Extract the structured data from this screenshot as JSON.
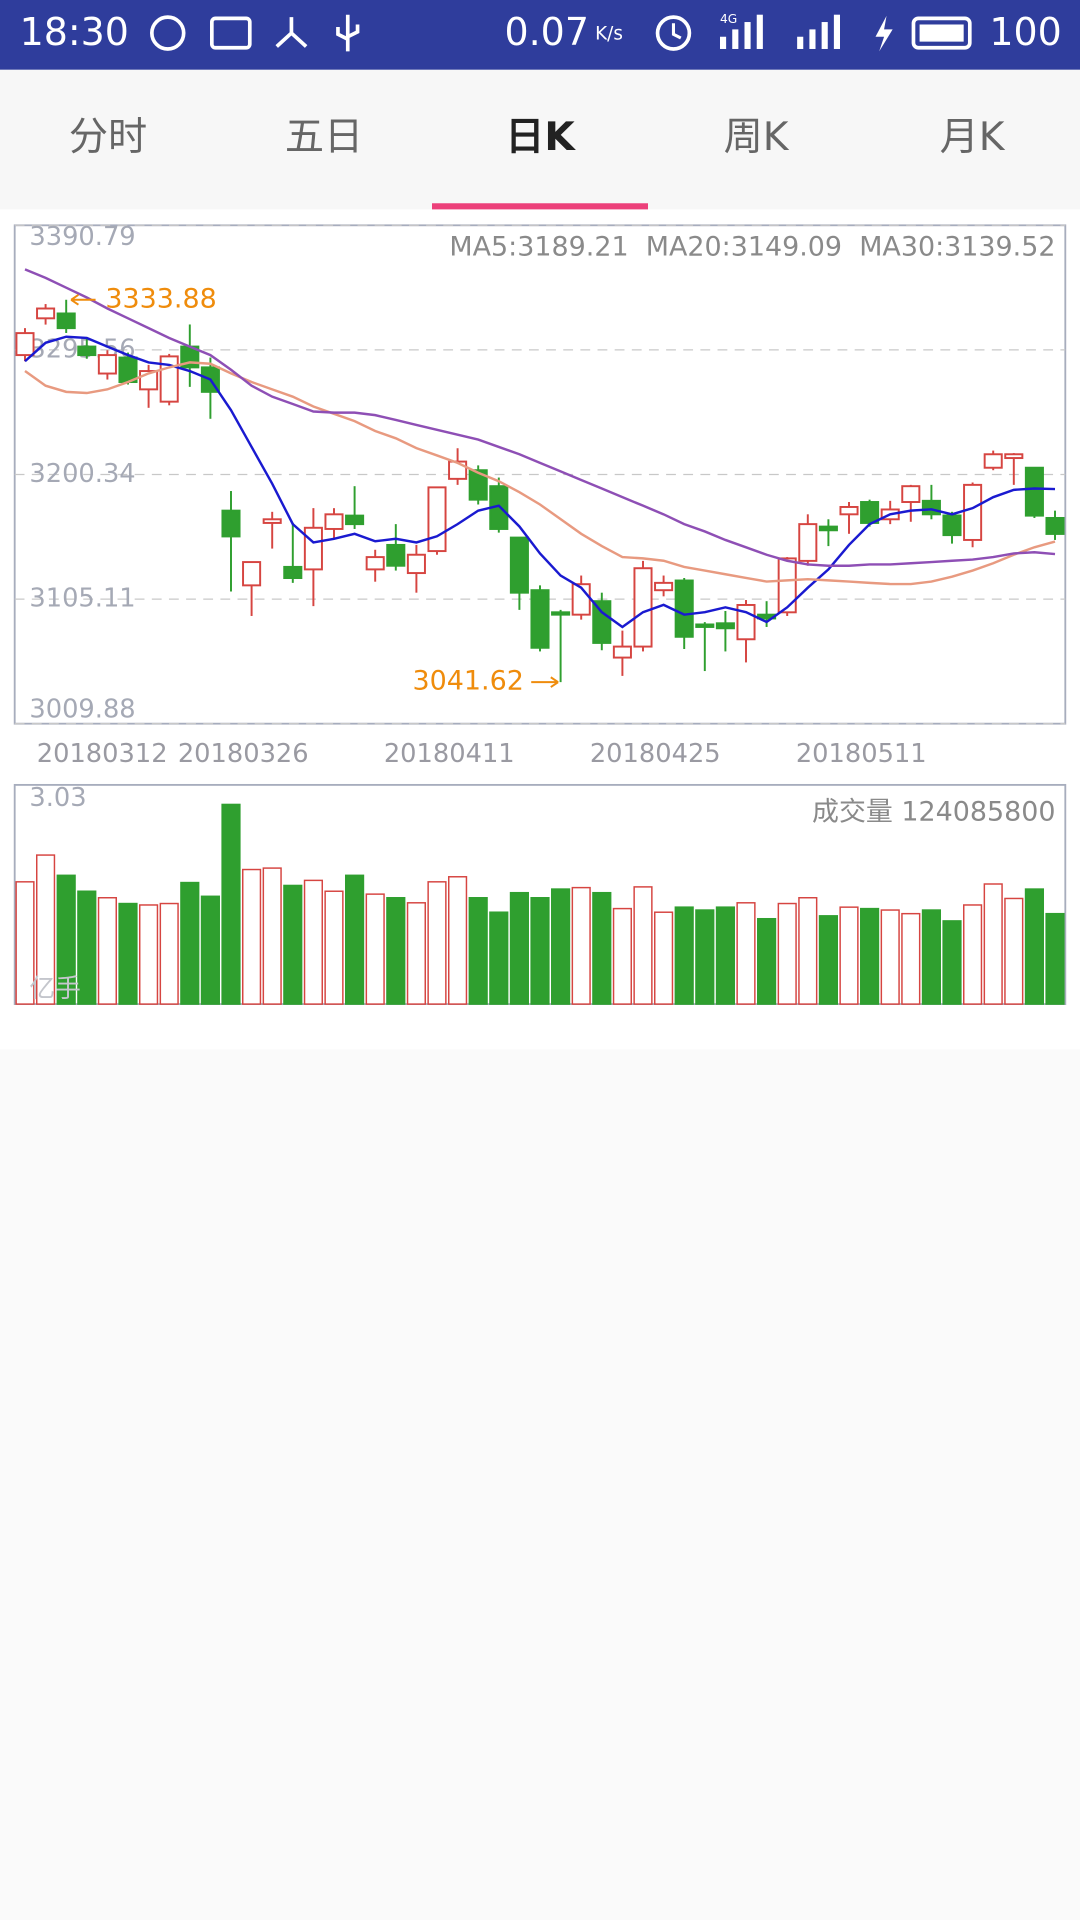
{
  "status_bar": {
    "time": "18:30",
    "speed": "0.07",
    "speed_unit": "K/s",
    "network": "4G",
    "battery": "100"
  },
  "tabs": [
    "分时",
    "五日",
    "日K",
    "周K",
    "月K"
  ],
  "selected_tab": 2,
  "chart_data": [
    {
      "type": "candlestick",
      "categories": [
        "20180312",
        null,
        null,
        null,
        null,
        null,
        null,
        null,
        null,
        null,
        "20180326",
        null,
        null,
        null,
        null,
        null,
        null,
        null,
        null,
        null,
        "20180411",
        null,
        null,
        null,
        null,
        null,
        null,
        null,
        null,
        null,
        "20180425",
        null,
        null,
        null,
        null,
        null,
        null,
        null,
        null,
        null,
        "20180511",
        null,
        null,
        null,
        null,
        null,
        null,
        null,
        null,
        null,
        null
      ],
      "open": [
        3291.6,
        3319.7,
        3323.4,
        3298.1,
        3277.5,
        3289.7,
        3265.4,
        3256.0,
        3298.1,
        3282.2,
        3172.7,
        3115.6,
        3163.3,
        3129.7,
        3127.8,
        3158.7,
        3168.9,
        3127.8,
        3146.5,
        3125.0,
        3141.8,
        3197.0,
        3203.6,
        3191.4,
        3152.1,
        3111.9,
        3095.0,
        3093.2,
        3103.5,
        3060.4,
        3068.8,
        3111.9,
        3119.3,
        3085.7,
        3086.6,
        3074.4,
        3093.2,
        3095.0,
        3134.3,
        3160.5,
        3169.9,
        3179.3,
        3166.1,
        3179.3,
        3180.2,
        3169.0,
        3150.3,
        3205.5,
        3212.9,
        3205.5,
        3167.1
      ],
      "high": [
        3312.2,
        3330.6,
        3333.88,
        3304.7,
        3295.3,
        3293.5,
        3284.1,
        3292.5,
        3315.0,
        3289.7,
        3187.7,
        3133.4,
        3171.8,
        3163.3,
        3174.6,
        3174.6,
        3191.4,
        3142.8,
        3162.4,
        3146.5,
        3190.5,
        3220.4,
        3207.3,
        3198.0,
        3152.1,
        3115.6,
        3096.9,
        3123.1,
        3110.0,
        3081.0,
        3134.3,
        3123.1,
        3121.2,
        3087.5,
        3096.0,
        3104.4,
        3103.5,
        3137.2,
        3169.9,
        3166.1,
        3179.3,
        3181.1,
        3180.2,
        3192.4,
        3192.4,
        3171.8,
        3194.2,
        3218.6,
        3216.7,
        3205.5,
        3172.7
      ],
      "low": [
        3286.9,
        3314.9,
        3308.5,
        3288.8,
        3272.9,
        3269.1,
        3251.3,
        3253.2,
        3267.3,
        3242.9,
        3110.9,
        3092.2,
        3143.7,
        3117.5,
        3099.7,
        3151.2,
        3158.7,
        3118.4,
        3126.9,
        3110.0,
        3139.0,
        3192.4,
        3177.4,
        3155.9,
        3096.9,
        3065.1,
        3041.62,
        3089.4,
        3066.0,
        3046.4,
        3065.1,
        3107.2,
        3067.0,
        3050.1,
        3065.1,
        3056.7,
        3083.8,
        3092.2,
        3130.6,
        3145.6,
        3155.0,
        3160.5,
        3162.4,
        3164.2,
        3166.1,
        3147.5,
        3144.7,
        3203.6,
        3192.4,
        3167.1,
        3150.3
      ],
      "close": [
        3308.4,
        3327.2,
        3312.2,
        3291.6,
        3291.6,
        3271.0,
        3279.4,
        3290.6,
        3282.2,
        3263.5,
        3153.0,
        3133.4,
        3166.1,
        3121.2,
        3159.6,
        3169.9,
        3162.4,
        3137.2,
        3130.6,
        3139.0,
        3190.5,
        3210.2,
        3181.1,
        3158.7,
        3110.0,
        3067.9,
        3093.2,
        3116.5,
        3071.6,
        3068.8,
        3128.7,
        3117.5,
        3076.3,
        3083.8,
        3082.8,
        3100.6,
        3090.3,
        3136.2,
        3162.4,
        3157.7,
        3175.5,
        3163.3,
        3173.6,
        3191.4,
        3169.9,
        3154.0,
        3192.4,
        3215.8,
        3215.8,
        3168.9,
        3154.9
      ],
      "up_color": "#d64541",
      "down_color": "#2f9f2f",
      "annotation_color": "#ef8c0c",
      "lines": [
        {
          "name": "MA5:3189.21",
          "color": "#1a1ad0",
          "values": [
            3286.9,
            3301.0,
            3305.6,
            3304.7,
            3298.1,
            3291.6,
            3286.0,
            3284.1,
            3279.4,
            3272.9,
            3249.5,
            3221.4,
            3193.3,
            3162.4,
            3148.4,
            3151.2,
            3155.0,
            3149.3,
            3151.2,
            3148.4,
            3153.1,
            3162.4,
            3172.7,
            3176.5,
            3160.6,
            3140.0,
            3123.1,
            3113.8,
            3095.1,
            3083.8,
            3095.1,
            3100.7,
            3093.2,
            3095.1,
            3098.8,
            3095.1,
            3087.6,
            3098.8,
            3113.8,
            3127.8,
            3146.5,
            3162.4,
            3169.9,
            3172.7,
            3173.7,
            3169.9,
            3174.6,
            3183.0,
            3188.6,
            3189.6,
            3189.21
          ]
        },
        {
          "name": "MA20:3149.09",
          "color": "#e89a80",
          "values": [
            3279.4,
            3268.2,
            3263.5,
            3262.6,
            3265.4,
            3271.0,
            3277.6,
            3282.2,
            3286.0,
            3285.0,
            3277.6,
            3271.0,
            3265.4,
            3259.8,
            3252.3,
            3246.7,
            3241.1,
            3233.6,
            3228.0,
            3220.5,
            3214.9,
            3209.2,
            3201.7,
            3195.2,
            3186.8,
            3177.4,
            3166.2,
            3155.0,
            3145.6,
            3137.2,
            3136.2,
            3134.4,
            3129.7,
            3126.9,
            3124.1,
            3121.3,
            3118.5,
            3119.4,
            3120.3,
            3119.4,
            3118.5,
            3117.5,
            3116.6,
            3116.6,
            3118.5,
            3122.2,
            3126.9,
            3132.5,
            3139.0,
            3144.7,
            3149.09
          ]
        },
        {
          "name": "MA30:3139.52",
          "color": "#8e4fb5",
          "values": [
            3357.1,
            3350.6,
            3343.1,
            3335.6,
            3327.2,
            3319.7,
            3312.2,
            3304.7,
            3298.1,
            3291.6,
            3280.4,
            3268.2,
            3259.8,
            3254.2,
            3248.5,
            3247.6,
            3247.6,
            3245.7,
            3242.0,
            3238.2,
            3234.5,
            3230.8,
            3227.0,
            3221.4,
            3215.8,
            3209.2,
            3202.7,
            3196.1,
            3189.6,
            3183.0,
            3176.5,
            3169.9,
            3162.4,
            3156.8,
            3150.3,
            3144.7,
            3139.0,
            3134.4,
            3131.6,
            3130.6,
            3130.6,
            3131.6,
            3131.6,
            3132.5,
            3133.4,
            3134.4,
            3135.3,
            3137.2,
            3140.0,
            3140.9,
            3139.52
          ]
        }
      ],
      "ylim": [
        3009.88,
        3390.79
      ],
      "yticks": [
        3009.88,
        3105.11,
        3200.34,
        3295.56,
        3390.79
      ],
      "grid": true
    },
    {
      "type": "bar",
      "title": "成交量 124085800",
      "unit": "亿手",
      "values": [
        1.69,
        2.06,
        1.78,
        1.56,
        1.47,
        1.39,
        1.37,
        1.39,
        1.68,
        1.49,
        2.76,
        1.86,
        1.88,
        1.64,
        1.71,
        1.56,
        1.78,
        1.52,
        1.47,
        1.4,
        1.69,
        1.76,
        1.47,
        1.27,
        1.54,
        1.47,
        1.59,
        1.61,
        1.54,
        1.32,
        1.62,
        1.27,
        1.34,
        1.3,
        1.34,
        1.4,
        1.18,
        1.39,
        1.47,
        1.22,
        1.34,
        1.32,
        1.3,
        1.25,
        1.3,
        1.15,
        1.37,
        1.66,
        1.46,
        1.59,
        1.25
      ],
      "ylim": [
        0,
        3.03
      ],
      "yticks": [
        3.03
      ]
    }
  ]
}
